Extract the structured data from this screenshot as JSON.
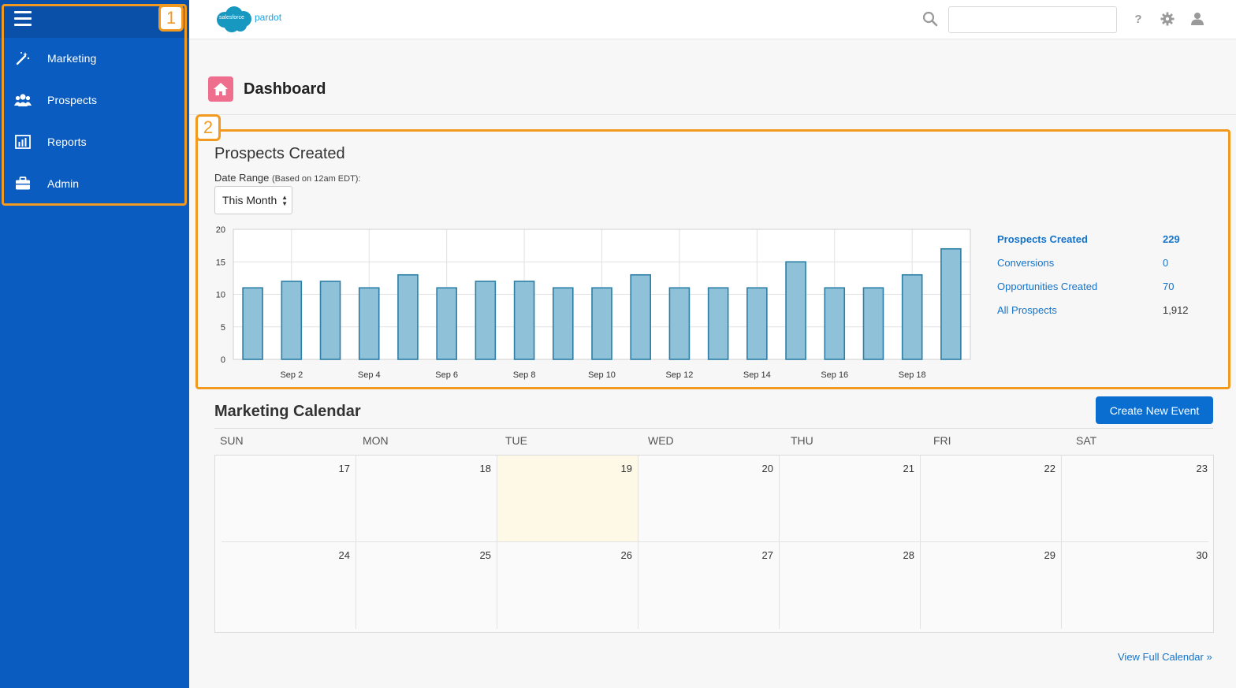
{
  "sidebar": {
    "items": [
      {
        "label": "Marketing",
        "icon": "wand-icon"
      },
      {
        "label": "Prospects",
        "icon": "people-icon"
      },
      {
        "label": "Reports",
        "icon": "bar-chart-icon"
      },
      {
        "label": "Admin",
        "icon": "briefcase-icon"
      }
    ]
  },
  "callouts": {
    "one": "1",
    "two": "2"
  },
  "header": {
    "logo_small": "salesforce",
    "logo_text": "pardot",
    "search_value": "",
    "help_label": "?"
  },
  "page": {
    "title": "Dashboard"
  },
  "prospects_panel": {
    "title": "Prospects Created",
    "date_range_label": "Date Range",
    "date_range_note": "(Based on 12am EDT):",
    "date_range_value": "This Month"
  },
  "chart_data": {
    "type": "bar",
    "x": [
      "Sep 1",
      "Sep 2",
      "Sep 3",
      "Sep 4",
      "Sep 5",
      "Sep 6",
      "Sep 7",
      "Sep 8",
      "Sep 9",
      "Sep 10",
      "Sep 11",
      "Sep 12",
      "Sep 13",
      "Sep 14",
      "Sep 15",
      "Sep 16",
      "Sep 17",
      "Sep 18",
      "Sep 19"
    ],
    "values": [
      11,
      12,
      12,
      11,
      13,
      11,
      12,
      12,
      11,
      11,
      13,
      11,
      11,
      11,
      15,
      11,
      11,
      13,
      17
    ],
    "xtick_labels": [
      "Sep 2",
      "Sep 4",
      "Sep 6",
      "Sep 8",
      "Sep 10",
      "Sep 12",
      "Sep 14",
      "Sep 16",
      "Sep 18"
    ],
    "yticks": [
      0,
      5,
      10,
      15,
      20
    ],
    "ylim": [
      0,
      20
    ],
    "grid": true,
    "colors": {
      "bar_fill": "#8fc1d8",
      "bar_stroke": "#2b7ea6"
    }
  },
  "stats": [
    {
      "name": "Prospects Created",
      "value": "229",
      "bold": true
    },
    {
      "name": "Conversions",
      "value": "0",
      "bold": false
    },
    {
      "name": "Opportunities Created",
      "value": "70",
      "bold": false
    },
    {
      "name": "All Prospects",
      "value": "1,912",
      "bold": false
    }
  ],
  "calendar": {
    "title": "Marketing Calendar",
    "create_label": "Create New Event",
    "days": [
      "SUN",
      "MON",
      "TUE",
      "WED",
      "THU",
      "FRI",
      "SAT"
    ],
    "weeks": [
      [
        "17",
        "18",
        "19",
        "20",
        "21",
        "22",
        "23"
      ],
      [
        "24",
        "25",
        "26",
        "27",
        "28",
        "29",
        "30"
      ]
    ],
    "today": "19",
    "view_full_label": "View Full Calendar »"
  },
  "colors": {
    "sidebar": "#0b5cc0",
    "accent": "#0a6ed1",
    "callout": "#f29a1f",
    "link": "#1573c9"
  }
}
